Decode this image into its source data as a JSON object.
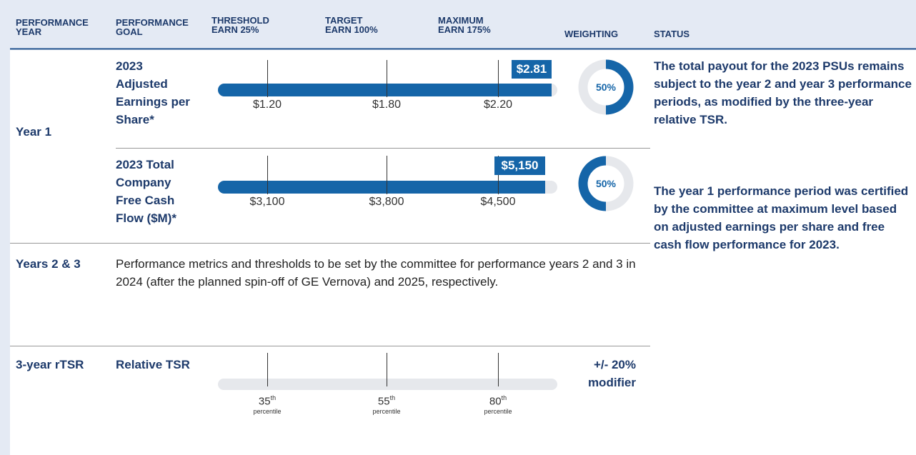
{
  "header": {
    "columns": [
      [
        "PERFORMANCE",
        "YEAR"
      ],
      [
        "PERFORMANCE",
        "GOAL"
      ],
      [
        "THRESHOLD",
        "EARN 25%"
      ],
      [
        "TARGET",
        "EARN 100%"
      ],
      [
        "MAXIMUM",
        "EARN 175%"
      ],
      [
        "WEIGHTING"
      ],
      [
        "STATUS"
      ]
    ]
  },
  "year1": {
    "label": "Year 1",
    "goals": [
      {
        "name": [
          "2023",
          "Adjusted",
          "Earnings per",
          "Share*"
        ],
        "result": "$2.81",
        "levels": [
          "$1.20",
          "$1.80",
          "$2.20"
        ],
        "weighting": "50%"
      },
      {
        "name": [
          "2023 Total",
          "Company",
          "Free Cash",
          "Flow ($M)*"
        ],
        "result": "$5,150",
        "levels": [
          "$3,100",
          "$3,800",
          "$4,500"
        ],
        "weighting": "50%"
      }
    ]
  },
  "status": [
    "The total payout for the 2023 PSUs remains subject to the year 2 and year 3 performance periods, as modified by the three-year relative TSR.",
    "The year 1 performance period was certified by the committee at maximum level based on adjusted earnings per share and free cash flow performance for 2023."
  ],
  "years23": {
    "label": "Years 2 & 3",
    "text": "Performance metrics and thresholds to be set by the committee for performance years 2 and 3 in 2024 (after the planned spin-off of GE Vernova) and 2025, respectively."
  },
  "rtsr": {
    "label": "3-year rTSR",
    "goal": "Relative TSR",
    "levels": [
      {
        "number": "35",
        "suffix": "th",
        "unit": "percentile"
      },
      {
        "number": "55",
        "suffix": "th",
        "unit": "percentile"
      },
      {
        "number": "80",
        "suffix": "th",
        "unit": "percentile"
      }
    ],
    "modifier": [
      "+/- 20%",
      "modifier"
    ]
  }
}
